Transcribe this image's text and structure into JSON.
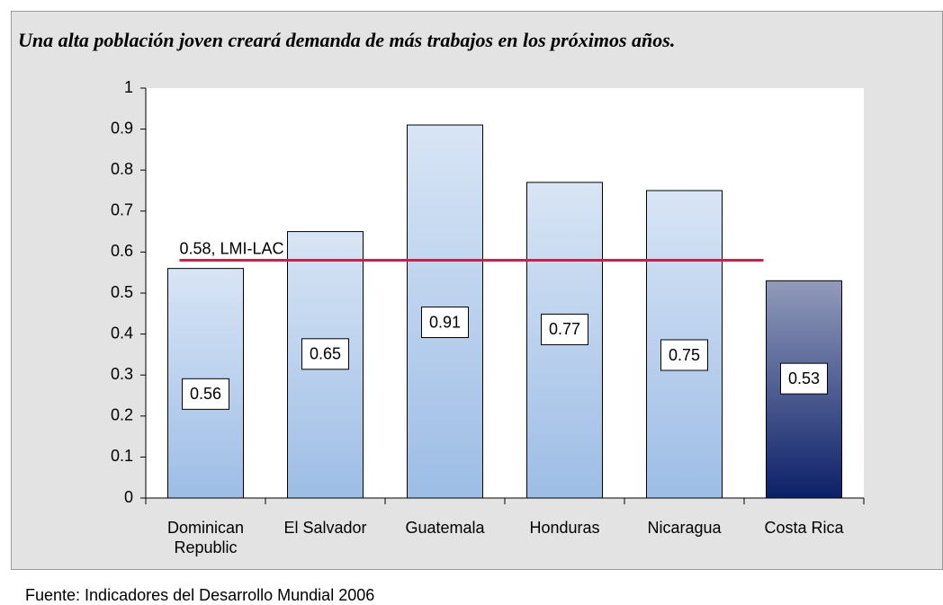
{
  "chart_data": {
    "type": "bar",
    "title": "Una alta población joven creará demanda de más trabajos en los próximos años.",
    "categories": [
      "Dominican Republic",
      "El Salvador",
      "Guatemala",
      "Honduras",
      "Nicaragua",
      "Costa Rica"
    ],
    "values": [
      0.56,
      0.65,
      0.91,
      0.77,
      0.75,
      0.53
    ],
    "colors": [
      "#9dbde6",
      "#9dbde6",
      "#9dbde6",
      "#9dbde6",
      "#9dbde6",
      "#0c2068"
    ],
    "ylim": [
      0,
      1
    ],
    "yticks": [
      0,
      0.1,
      0.2,
      0.3,
      0.4,
      0.5,
      0.6,
      0.7,
      0.8,
      0.9,
      1
    ],
    "reference_line": {
      "value": 0.58,
      "label": "0.58, LMI-LAC",
      "color": "#c0264a"
    },
    "source": "Fuente: Indicadores del Desarrollo Mundial 2006"
  }
}
